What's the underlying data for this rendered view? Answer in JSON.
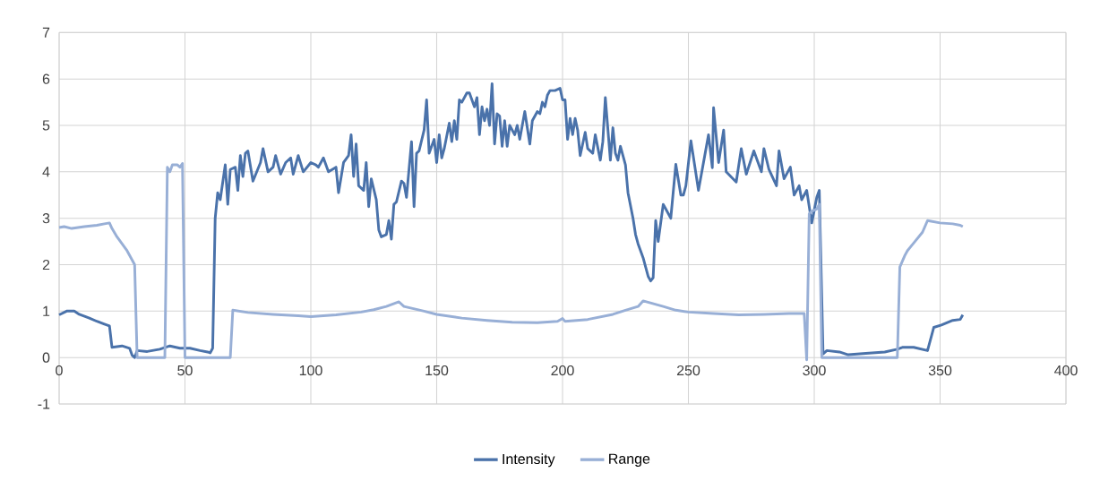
{
  "chart_data": {
    "type": "line",
    "xlim": [
      0,
      400
    ],
    "ylim": [
      -1,
      7
    ],
    "xticks": [
      0,
      50,
      100,
      150,
      200,
      250,
      300,
      350,
      400
    ],
    "yticks": [
      -1,
      0,
      1,
      2,
      3,
      4,
      5,
      6,
      7
    ],
    "grid": true,
    "legend": "bottom",
    "series": [
      {
        "name": "Intensity",
        "color": "#4a72aa",
        "x": [
          0,
          3,
          6,
          8,
          12,
          15,
          18,
          20,
          21,
          25,
          28,
          29,
          30,
          31,
          35,
          40,
          44,
          48,
          52,
          56,
          59,
          60,
          61,
          62,
          63,
          64,
          66,
          67,
          68,
          70,
          71,
          72,
          73,
          74,
          75,
          77,
          80,
          81,
          83,
          85,
          86,
          88,
          90,
          92,
          93,
          95,
          97,
          100,
          102,
          103,
          105,
          107,
          110,
          111,
          113,
          115,
          116,
          117,
          118,
          119,
          121,
          122,
          123,
          124,
          126,
          127,
          128,
          130,
          131,
          132,
          133,
          134,
          136,
          137,
          138,
          140,
          141,
          142,
          143,
          145,
          146,
          147,
          149,
          150,
          151,
          152,
          153,
          155,
          156,
          157,
          158,
          159,
          160,
          162,
          163,
          165,
          166,
          167,
          168,
          169,
          170,
          171,
          172,
          173,
          174,
          175,
          176,
          177,
          178,
          179,
          181,
          182,
          183,
          184,
          185,
          187,
          188,
          190,
          191,
          192,
          193,
          194,
          195,
          197,
          199,
          200,
          201,
          202,
          203,
          204,
          205,
          206,
          207,
          209,
          210,
          212,
          213,
          215,
          216,
          217,
          219,
          220,
          221,
          222,
          223,
          225,
          226,
          228,
          229,
          230,
          231,
          232,
          234,
          235,
          236,
          237,
          238,
          240,
          241,
          243,
          245,
          247,
          248,
          249,
          251,
          254,
          258,
          259.5,
          260,
          262,
          264,
          265,
          269,
          271,
          273,
          276,
          279,
          280,
          282,
          285,
          286,
          288,
          290.5,
          292,
          294,
          295,
          297,
          299,
          301,
          302,
          303.5,
          305,
          310,
          313.5,
          320.5,
          328,
          333,
          335,
          339.5,
          345,
          347.5,
          350.5,
          355,
          358,
          359
        ],
        "values": [
          0.92,
          1.0,
          1.0,
          0.93,
          0.85,
          0.78,
          0.72,
          0.68,
          0.22,
          0.25,
          0.2,
          0.05,
          0.0,
          0.15,
          0.13,
          0.18,
          0.25,
          0.2,
          0.2,
          0.15,
          0.12,
          0.1,
          0.2,
          3.0,
          3.55,
          3.4,
          4.15,
          3.3,
          4.05,
          4.1,
          3.6,
          4.35,
          3.9,
          4.4,
          4.45,
          3.8,
          4.2,
          4.5,
          4.0,
          4.1,
          4.35,
          3.95,
          4.2,
          4.3,
          3.95,
          4.35,
          4.0,
          4.2,
          4.15,
          4.1,
          4.3,
          4.0,
          4.1,
          3.55,
          4.2,
          4.35,
          4.8,
          3.9,
          4.6,
          3.7,
          3.6,
          4.2,
          3.25,
          3.85,
          3.4,
          2.75,
          2.6,
          2.65,
          2.95,
          2.55,
          3.3,
          3.35,
          3.8,
          3.75,
          3.45,
          4.65,
          3.25,
          4.4,
          4.45,
          4.9,
          5.55,
          4.4,
          4.7,
          4.2,
          4.8,
          4.3,
          4.5,
          5.05,
          4.65,
          5.1,
          4.7,
          5.55,
          5.5,
          5.7,
          5.7,
          5.4,
          5.6,
          4.8,
          5.4,
          5.1,
          5.35,
          5.0,
          5.9,
          4.6,
          5.25,
          5.2,
          4.55,
          5.1,
          4.55,
          5.0,
          4.8,
          5.0,
          4.7,
          5.0,
          5.3,
          4.6,
          5.1,
          5.3,
          5.25,
          5.5,
          5.4,
          5.65,
          5.75,
          5.75,
          5.8,
          5.55,
          5.55,
          4.7,
          5.15,
          4.8,
          5.15,
          4.9,
          4.35,
          4.85,
          4.5,
          4.4,
          4.8,
          4.25,
          4.65,
          5.6,
          4.25,
          4.95,
          4.4,
          4.25,
          4.55,
          4.15,
          3.55,
          3.0,
          2.65,
          2.45,
          2.3,
          2.15,
          1.75,
          1.65,
          1.72,
          2.95,
          2.5,
          3.3,
          3.2,
          3.0,
          4.16,
          3.5,
          3.5,
          3.7,
          4.67,
          3.6,
          4.8,
          4.09,
          5.38,
          4.2,
          4.9,
          4.0,
          3.78,
          4.5,
          3.95,
          4.45,
          4.0,
          4.5,
          4.05,
          3.7,
          4.45,
          3.85,
          4.1,
          3.5,
          3.7,
          3.4,
          3.6,
          2.9,
          3.45,
          3.6,
          0.08,
          0.15,
          0.12,
          0.06,
          0.09,
          0.12,
          0.18,
          0.22,
          0.22,
          0.15,
          0.65,
          0.7,
          0.8,
          0.82,
          0.92
        ]
      },
      {
        "name": "Range",
        "color": "#98afd6",
        "x": [
          0,
          2,
          5,
          10,
          15,
          18,
          20,
          21,
          23,
          25,
          27,
          29,
          30,
          31,
          42,
          43,
          44,
          45,
          47,
          48,
          49,
          50,
          68,
          69,
          75,
          85,
          95,
          100,
          110,
          120,
          125,
          130,
          135,
          137,
          145,
          150,
          160,
          170,
          180,
          190,
          198,
          200,
          201,
          210,
          220,
          225,
          230,
          232,
          240,
          245,
          250,
          260,
          270,
          280,
          290,
          296,
          297,
          298,
          299,
          301,
          302,
          303,
          333,
          334,
          336,
          337,
          340,
          343,
          345,
          350,
          355,
          358,
          359
        ],
        "values": [
          2.8,
          2.82,
          2.78,
          2.82,
          2.85,
          2.88,
          2.9,
          2.78,
          2.6,
          2.45,
          2.3,
          2.1,
          2.0,
          0.0,
          0.0,
          4.1,
          4.0,
          4.15,
          4.15,
          4.1,
          4.18,
          0.0,
          0.0,
          1.02,
          0.97,
          0.93,
          0.9,
          0.88,
          0.92,
          0.98,
          1.03,
          1.1,
          1.2,
          1.1,
          1.0,
          0.93,
          0.85,
          0.8,
          0.76,
          0.75,
          0.78,
          0.84,
          0.78,
          0.82,
          0.93,
          1.02,
          1.1,
          1.22,
          1.1,
          1.02,
          0.98,
          0.95,
          0.92,
          0.93,
          0.95,
          0.95,
          -0.05,
          3.1,
          3.15,
          3.2,
          3.3,
          0.0,
          0.0,
          1.95,
          2.2,
          2.3,
          2.5,
          2.7,
          2.95,
          2.9,
          2.88,
          2.85,
          2.82
        ]
      }
    ]
  }
}
